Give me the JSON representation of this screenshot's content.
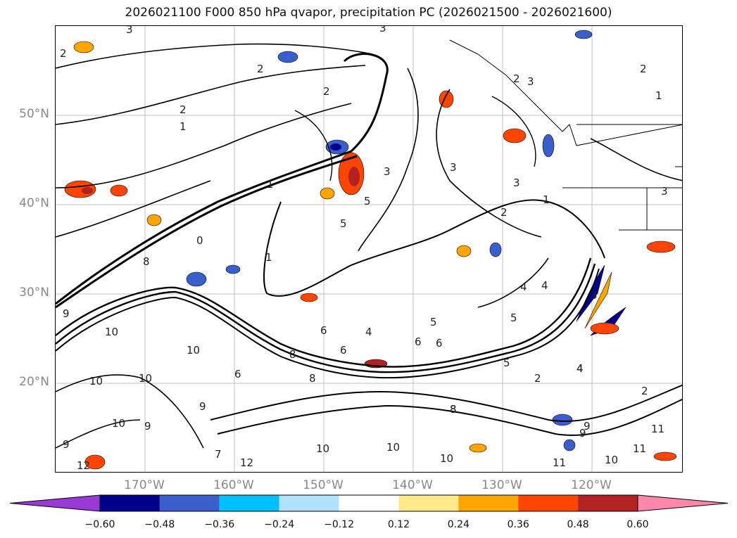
{
  "title": "2026021100 F000 850 hPa qvapor, precipitation PC (2026021500 - 2026021600)",
  "map": {
    "lat_labels": [
      "50°N",
      "40°N",
      "30°N",
      "20°N"
    ],
    "lon_labels": [
      "170°W",
      "160°W",
      "150°W",
      "140°W",
      "130°W",
      "120°W"
    ],
    "contour_labels": [
      "3",
      "2",
      "3",
      "2",
      "2",
      "1",
      "2",
      "3",
      "5",
      "3",
      "2",
      "1",
      "0",
      "1",
      "5",
      "3",
      "2",
      "1",
      "4",
      "8",
      "9",
      "10",
      "6",
      "6",
      "6",
      "4",
      "5",
      "5",
      "6",
      "8",
      "9",
      "5",
      "4",
      "3",
      "10",
      "10",
      "10",
      "10",
      "9",
      "10",
      "10",
      "11",
      "12",
      "11",
      "10",
      "12",
      "9",
      "8",
      "9",
      "10",
      "2",
      "9",
      "11",
      "8",
      "7",
      "6",
      "4",
      "8",
      "4",
      "2",
      "1",
      "3",
      "2",
      "3"
    ]
  },
  "colorbar": {
    "ticks": [
      "−0.60",
      "−0.48",
      "−0.36",
      "−0.24",
      "−0.12",
      "0.12",
      "0.24",
      "0.36",
      "0.48",
      "0.60"
    ],
    "colors": [
      "#9a3ad6",
      "#00008b",
      "#3a5fcd",
      "#00bfff",
      "#b0e2ff",
      "#ffffff",
      "#ffe98a",
      "#ffa500",
      "#ff4500",
      "#b22222",
      "#ff88aa"
    ]
  }
}
